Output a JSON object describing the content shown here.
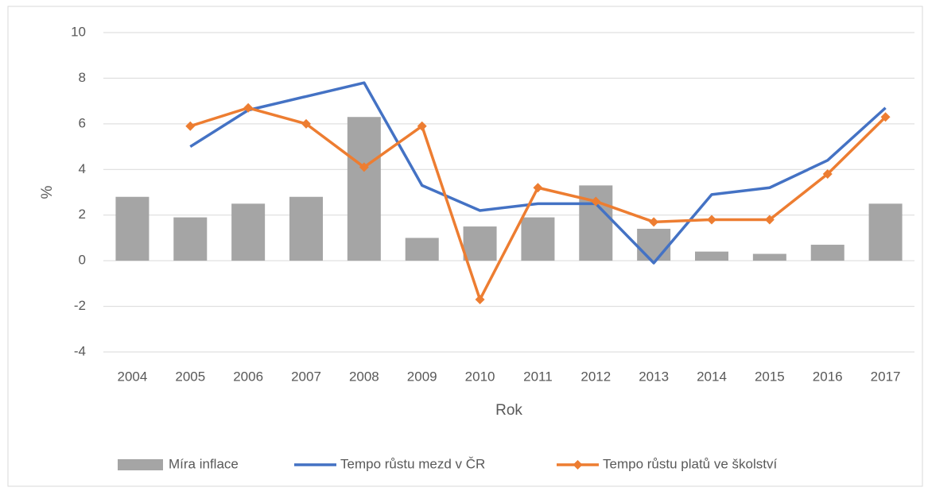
{
  "chart_data": {
    "type": "bar",
    "x_label": "Rok",
    "y_label": "%",
    "categories": [
      "2004",
      "2005",
      "2006",
      "2007",
      "2008",
      "2009",
      "2010",
      "2011",
      "2012",
      "2013",
      "2014",
      "2015",
      "2016",
      "2017"
    ],
    "series": [
      {
        "name": "Míra inflace",
        "type": "bar",
        "color": "#a5a5a5",
        "values": [
          2.8,
          1.9,
          2.5,
          2.8,
          6.3,
          1.0,
          1.5,
          1.9,
          3.3,
          1.4,
          0.4,
          0.3,
          0.7,
          2.5
        ]
      },
      {
        "name": "Tempo růstu mezd v ČR",
        "type": "line",
        "color": "#4472c4",
        "values": [
          null,
          5.0,
          6.6,
          7.2,
          7.8,
          3.3,
          2.2,
          2.5,
          2.5,
          -0.1,
          2.9,
          3.2,
          4.4,
          6.7
        ]
      },
      {
        "name": "Tempo růstu platů ve školství",
        "type": "line",
        "marker": "diamond",
        "color": "#ed7d31",
        "values": [
          null,
          5.9,
          6.7,
          6.0,
          4.1,
          5.9,
          -1.7,
          3.2,
          2.6,
          1.7,
          1.8,
          1.8,
          3.8,
          6.3
        ]
      }
    ],
    "ylim": [
      -4,
      10
    ],
    "yticks": [
      -4,
      -2,
      0,
      2,
      4,
      6,
      8,
      10
    ],
    "grid": true,
    "legend": "bottom"
  }
}
